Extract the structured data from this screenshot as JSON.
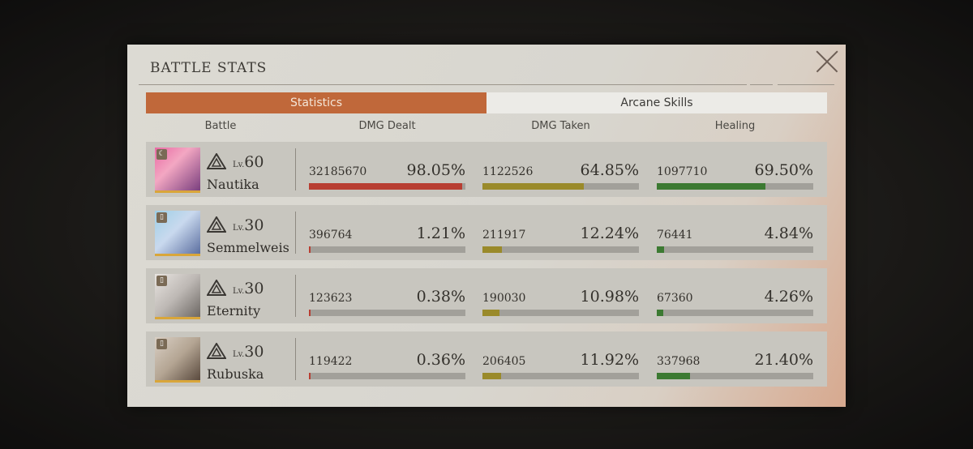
{
  "panel": {
    "title": "BATTLE STATS"
  },
  "tabs": [
    {
      "label": "Statistics",
      "active": true
    },
    {
      "label": "Arcane Skills",
      "active": false
    }
  ],
  "columns": [
    "Battle",
    "DMG Dealt",
    "DMG Taken",
    "Healing"
  ],
  "colors": {
    "dealt": "#b83e32",
    "taken": "#9a8a2a",
    "healing": "#3c7a32",
    "accent": "#c0683a"
  },
  "level_prefix": "Lv.",
  "rows": [
    {
      "name": "Nautika",
      "level": "60",
      "badge": "moon",
      "dealt": {
        "value": "32185670",
        "pct": "98.05%",
        "fraction": 0.9805
      },
      "taken": {
        "value": "1122526",
        "pct": "64.85%",
        "fraction": 0.6485
      },
      "healing": {
        "value": "1097710",
        "pct": "69.50%",
        "fraction": 0.695
      }
    },
    {
      "name": "Semmelweis",
      "level": "30",
      "badge": "book",
      "dealt": {
        "value": "396764",
        "pct": "1.21%",
        "fraction": 0.0121
      },
      "taken": {
        "value": "211917",
        "pct": "12.24%",
        "fraction": 0.1224
      },
      "healing": {
        "value": "76441",
        "pct": "4.84%",
        "fraction": 0.0484
      }
    },
    {
      "name": "Eternity",
      "level": "30",
      "badge": "book",
      "dealt": {
        "value": "123623",
        "pct": "0.38%",
        "fraction": 0.0038
      },
      "taken": {
        "value": "190030",
        "pct": "10.98%",
        "fraction": 0.1098
      },
      "healing": {
        "value": "67360",
        "pct": "4.26%",
        "fraction": 0.0426
      }
    },
    {
      "name": "Rubuska",
      "level": "30",
      "badge": "book",
      "dealt": {
        "value": "119422",
        "pct": "0.36%",
        "fraction": 0.0036
      },
      "taken": {
        "value": "206405",
        "pct": "11.92%",
        "fraction": 0.1192
      },
      "healing": {
        "value": "337968",
        "pct": "21.40%",
        "fraction": 0.214
      }
    }
  ]
}
